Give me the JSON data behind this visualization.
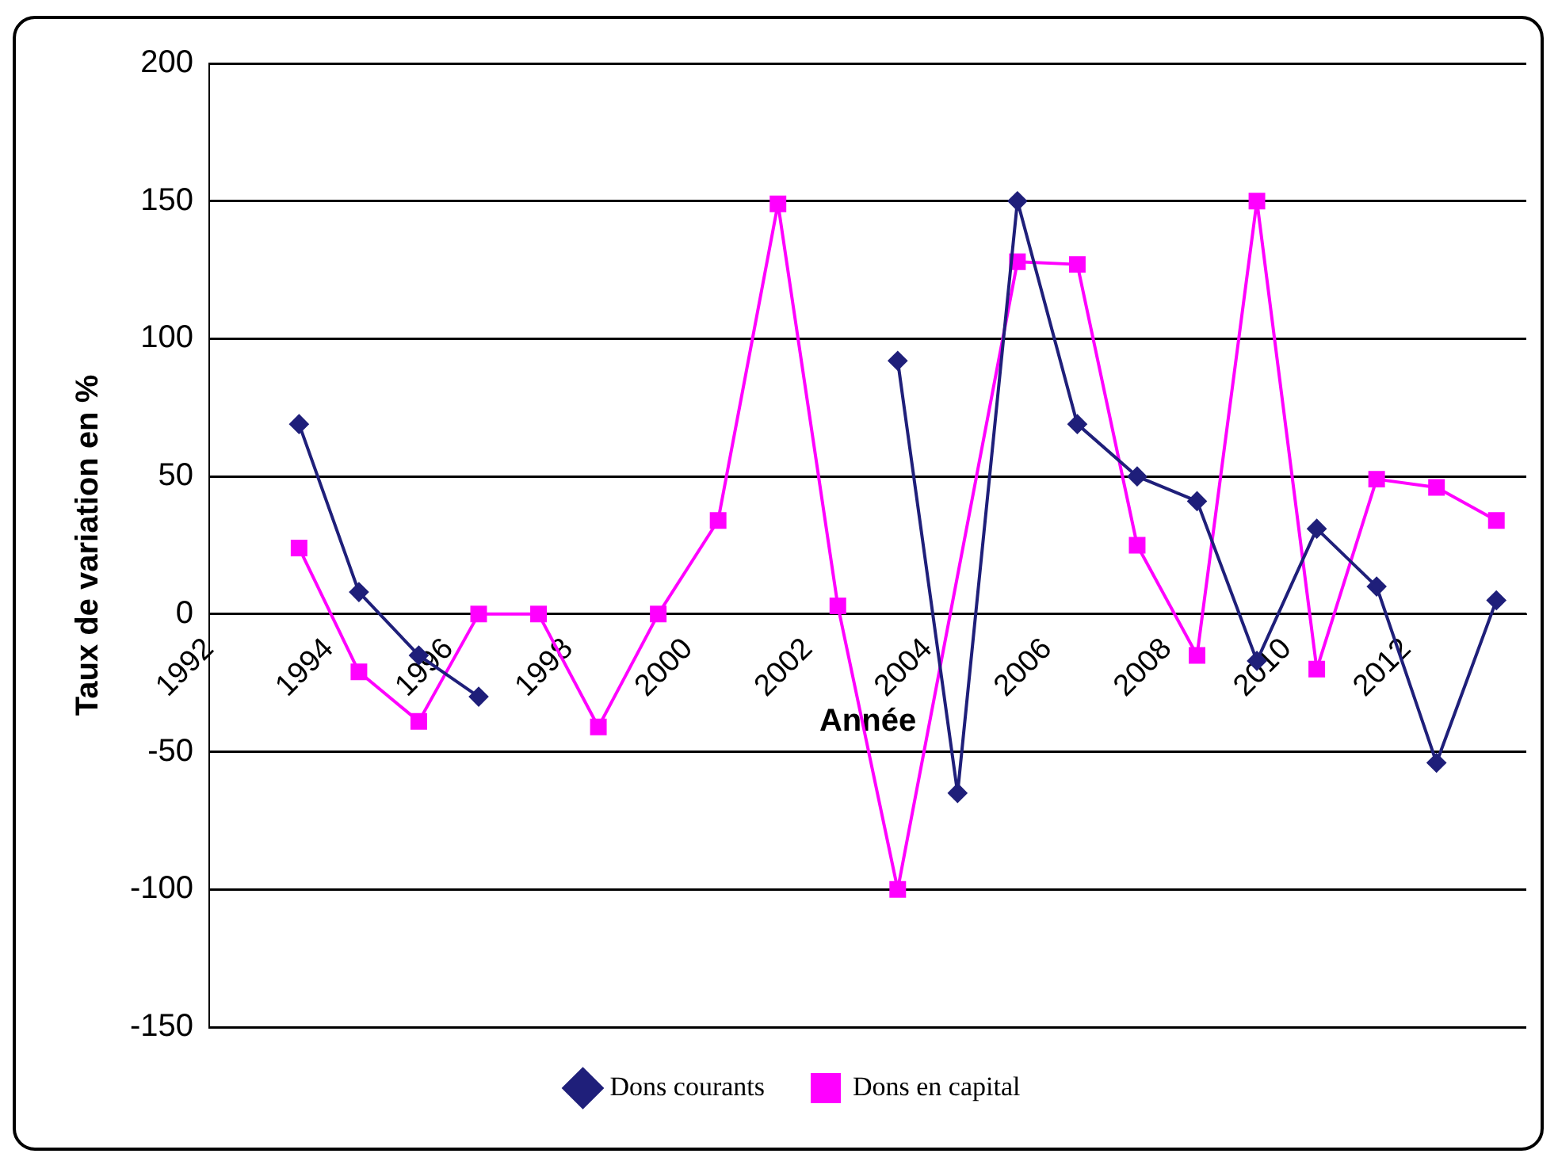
{
  "chart_data": {
    "type": "line",
    "ylabel": "Taux de variation en %",
    "xlabel": "Année",
    "x": [
      1993,
      1994,
      1995,
      1996,
      1997,
      1998,
      1999,
      2000,
      2001,
      2002,
      2003,
      2004,
      2005,
      2006,
      2007,
      2008,
      2009,
      2010,
      2011,
      2012,
      2013
    ],
    "xlim": [
      1991.5,
      2013.5
    ],
    "xticks": [
      {
        "value": 1991.5,
        "label": "1992"
      },
      {
        "value": 1993.5,
        "label": "1994"
      },
      {
        "value": 1995.5,
        "label": "1996"
      },
      {
        "value": 1997.5,
        "label": "1998"
      },
      {
        "value": 1999.5,
        "label": "2000"
      },
      {
        "value": 2001.5,
        "label": "2002"
      },
      {
        "value": 2003.5,
        "label": "2004"
      },
      {
        "value": 2005.5,
        "label": "2006"
      },
      {
        "value": 2007.5,
        "label": "2008"
      },
      {
        "value": 2009.5,
        "label": "2010"
      },
      {
        "value": 2011.5,
        "label": "2012"
      }
    ],
    "ylim": [
      -150,
      200
    ],
    "yticks": [
      -150,
      -100,
      -50,
      0,
      50,
      100,
      150,
      200
    ],
    "grid": "y",
    "legend": "bottom",
    "series": [
      {
        "name": "Dons courants",
        "color": "#1f1f7a",
        "marker": "diamond",
        "values": [
          69,
          8,
          -15,
          -30,
          null,
          null,
          null,
          null,
          null,
          null,
          92,
          -65,
          150,
          69,
          50,
          41,
          -17,
          31,
          10,
          -54,
          5
        ]
      },
      {
        "name": "Dons en capital",
        "color": "#ff00ff",
        "marker": "square",
        "x": [
          1993,
          1994,
          1995,
          1996,
          1997,
          1998,
          1999,
          2000,
          2001,
          2002,
          2003,
          2005,
          2006,
          2007,
          2008,
          2009,
          2010,
          2011,
          2012,
          2013
        ],
        "values": [
          24,
          -21,
          -39,
          0,
          0,
          -41,
          0,
          34,
          149,
          3,
          -100,
          128,
          127,
          25,
          -15,
          150,
          -20,
          49,
          46,
          34
        ]
      }
    ]
  }
}
